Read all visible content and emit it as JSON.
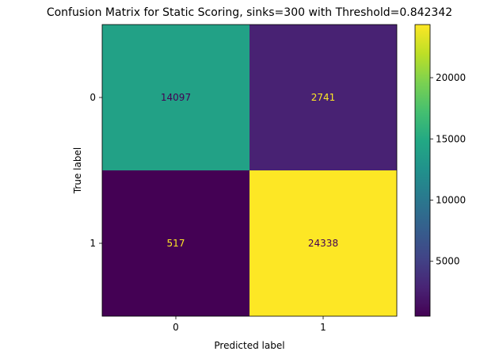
{
  "chart_data": {
    "type": "heatmap",
    "title": "Confusion Matrix for Static Scoring, sinks=300 with Threshold=0.842342",
    "xlabel": "Predicted label",
    "ylabel": "True label",
    "x_categories": [
      "0",
      "1"
    ],
    "y_categories": [
      "0",
      "1"
    ],
    "values": [
      [
        14097,
        2741
      ],
      [
        517,
        24338
      ]
    ],
    "colormap": "viridis",
    "colorbar": {
      "range": [
        517,
        24338
      ],
      "ticks": [
        5000,
        10000,
        15000,
        20000
      ],
      "tick_labels": [
        "5000",
        "10000",
        "15000",
        "20000"
      ]
    },
    "grid": false
  }
}
